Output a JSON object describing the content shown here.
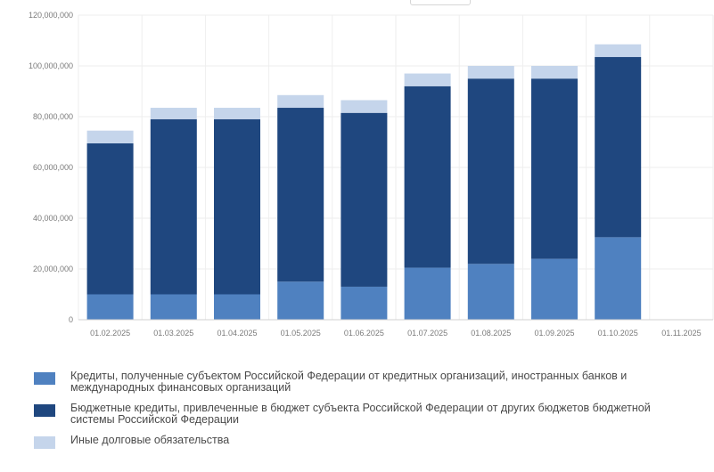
{
  "chart_data": {
    "type": "bar",
    "stacked": true,
    "categories": [
      "01.02.2025",
      "01.03.2025",
      "01.04.2025",
      "01.05.2025",
      "01.06.2025",
      "01.07.2025",
      "01.08.2025",
      "01.09.2025",
      "01.10.2025",
      "01.11.2025"
    ],
    "series": [
      {
        "name": "Кредиты, полученные субъектом Российской Федерации от кредитных организаций, иностранных банков и международных финансовых организаций",
        "color": "#4f81c0",
        "values": [
          10000000,
          10000000,
          10000000,
          15000000,
          13000000,
          20500000,
          22000000,
          24000000,
          32500000,
          0
        ]
      },
      {
        "name": "Бюджетные кредиты, привлеченные в бюджет субъекта Российской Федерации от других бюджетов бюджетной системы Российской Федерации",
        "color": "#1f477f",
        "values": [
          59500000,
          69000000,
          69000000,
          68500000,
          68500000,
          71500000,
          73000000,
          71000000,
          71000000,
          0
        ]
      },
      {
        "name": "Иные долговые обязательства",
        "color": "#c5d5eb",
        "values": [
          5000000,
          4500000,
          4500000,
          5000000,
          5000000,
          5000000,
          5000000,
          5000000,
          5000000,
          0
        ]
      }
    ],
    "yticks": [
      "0",
      "20,000,000",
      "40,000,000",
      "60,000,000",
      "80,000,000",
      "100,000,000",
      "120,000,000"
    ],
    "ylim": [
      0,
      120000000
    ],
    "grid": true,
    "legend": "bottom"
  }
}
